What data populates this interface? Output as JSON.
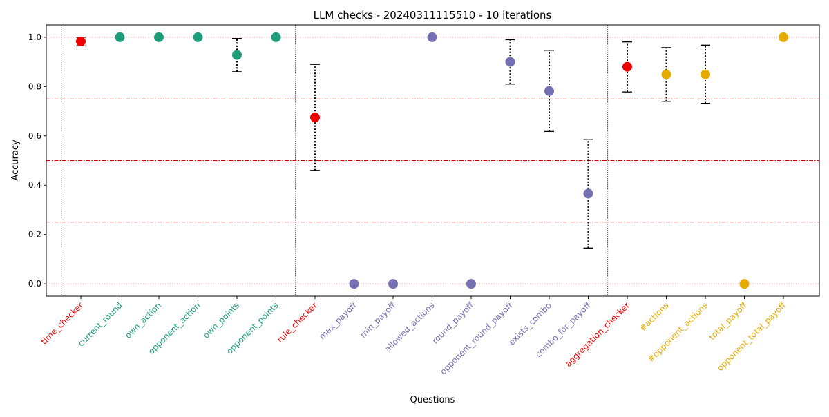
{
  "chart_data": {
    "type": "scatter",
    "title": "LLM checks - 20240311115510 - 10 iterations",
    "xlabel": "Questions",
    "ylabel": "Accuracy",
    "ylim": [
      -0.05,
      1.05
    ],
    "yticks": [
      0.0,
      0.2,
      0.4,
      0.6,
      0.8,
      1.0
    ],
    "ytick_labels": [
      "0.0",
      "0.2",
      "0.4",
      "0.6",
      "0.8",
      "1.0"
    ],
    "grid": false,
    "reference_lines": [
      {
        "y": 0.0,
        "style": "dotted",
        "color": "#f08080"
      },
      {
        "y": 0.25,
        "style": "dashdot",
        "color": "#e07070"
      },
      {
        "y": 0.5,
        "style": "dashdot",
        "color": "#cc0000"
      },
      {
        "y": 0.75,
        "style": "dashdot",
        "color": "#e07070"
      },
      {
        "y": 1.0,
        "style": "dotted",
        "color": "#f08080"
      }
    ],
    "group_separators_after_index": [
      -1,
      5,
      13
    ],
    "colors": {
      "checker": "#ee0000",
      "time": "#1b9e77",
      "rule": "#7570b3",
      "aggregation": "#e6ab02"
    },
    "points": [
      {
        "label": "time_checker",
        "group": "checker",
        "y": 0.983,
        "err_low": 0.965,
        "err_high": 1.0
      },
      {
        "label": "current_round",
        "group": "time",
        "y": 1.0,
        "err_low": null,
        "err_high": null
      },
      {
        "label": "own_action",
        "group": "time",
        "y": 1.0,
        "err_low": null,
        "err_high": null
      },
      {
        "label": "opponent_action",
        "group": "time",
        "y": 1.0,
        "err_low": null,
        "err_high": null
      },
      {
        "label": "own_points",
        "group": "time",
        "y": 0.928,
        "err_low": 0.86,
        "err_high": 0.995
      },
      {
        "label": "opponent_points",
        "group": "time",
        "y": 1.0,
        "err_low": null,
        "err_high": null
      },
      {
        "label": "rule_checker",
        "group": "checker",
        "y": 0.675,
        "err_low": 0.46,
        "err_high": 0.89
      },
      {
        "label": "max_payoff",
        "group": "rule",
        "y": 0.0,
        "err_low": null,
        "err_high": null
      },
      {
        "label": "min_payoff",
        "group": "rule",
        "y": 0.0,
        "err_low": null,
        "err_high": null
      },
      {
        "label": "allowed_actions",
        "group": "rule",
        "y": 1.0,
        "err_low": null,
        "err_high": null
      },
      {
        "label": "round_payoff",
        "group": "rule",
        "y": 0.0,
        "err_low": null,
        "err_high": null
      },
      {
        "label": "opponent_round_payoff",
        "group": "rule",
        "y": 0.9,
        "err_low": 0.81,
        "err_high": 0.99
      },
      {
        "label": "exists_combo",
        "group": "rule",
        "y": 0.782,
        "err_low": 0.618,
        "err_high": 0.947
      },
      {
        "label": "combo_for_payoff",
        "group": "rule",
        "y": 0.366,
        "err_low": 0.145,
        "err_high": 0.586
      },
      {
        "label": "aggregation_checker",
        "group": "checker",
        "y": 0.88,
        "err_low": 0.778,
        "err_high": 0.981
      },
      {
        "label": "#actions",
        "group": "aggregation",
        "y": 0.849,
        "err_low": 0.74,
        "err_high": 0.958
      },
      {
        "label": "#opponent_actions",
        "group": "aggregation",
        "y": 0.849,
        "err_low": 0.732,
        "err_high": 0.968
      },
      {
        "label": "total_payoff",
        "group": "aggregation",
        "y": 0.0,
        "err_low": null,
        "err_high": null
      },
      {
        "label": "opponent_total_payoff",
        "group": "aggregation",
        "y": 1.0,
        "err_low": null,
        "err_high": null
      }
    ]
  }
}
